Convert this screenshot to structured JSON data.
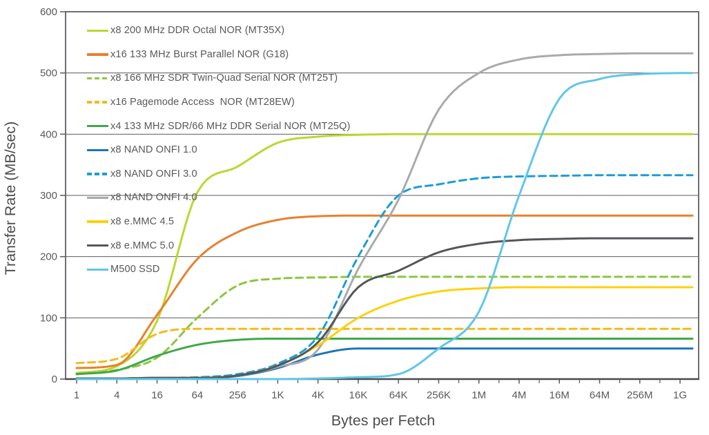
{
  "chart_data": {
    "type": "line",
    "title": "",
    "xlabel": "Bytes per Fetch",
    "ylabel": "Transfer Rate (MB/sec)",
    "x_scale": "log4",
    "x_tick_labels": [
      "1",
      "4",
      "16",
      "64",
      "256",
      "1K",
      "4K",
      "16K",
      "64K",
      "256K",
      "1M",
      "4M",
      "16M",
      "64M",
      "256M",
      "1G"
    ],
    "y_ticks": [
      0,
      100,
      200,
      300,
      400,
      500,
      600
    ],
    "ylim": [
      0,
      600
    ],
    "grid": "horizontal-only",
    "legend_position": "top-left-inside",
    "series": [
      {
        "name": "mt35x",
        "label": "x8 200 MHz DDR Octal NOR (MT35X)",
        "color": "#bdd62f",
        "dashed": false,
        "values": [
          10,
          21,
          95,
          305,
          347,
          386,
          396,
          399,
          400,
          400,
          400,
          400,
          400,
          400,
          400,
          400
        ]
      },
      {
        "name": "g18",
        "label": "x16 133 MHz Burst Parallel NOR (G18)",
        "color": "#e8802d",
        "dashed": false,
        "values": [
          18,
          23,
          105,
          196,
          240,
          260,
          266,
          267,
          267,
          267,
          267,
          267,
          267,
          267,
          267,
          267
        ]
      },
      {
        "name": "mt25t",
        "label": "x8 166 MHz SDR Twin-Quad Serial NOR (MT25T)",
        "color": "#8cc63e",
        "dashed": true,
        "values": [
          8,
          15,
          35,
          100,
          153,
          164,
          166,
          167,
          167,
          167,
          167,
          167,
          167,
          167,
          167,
          167
        ]
      },
      {
        "name": "mt28ew",
        "label": "x16 Pagemode Access  NOR (MT28EW)",
        "color": "#f3ba19",
        "dashed": true,
        "values": [
          26,
          33,
          74,
          82,
          82,
          82,
          82,
          82,
          82,
          82,
          82,
          82,
          82,
          82,
          82,
          82
        ]
      },
      {
        "name": "mt25q",
        "label": "x4 133 MHz SDR/66 MHz DDR Serial NOR (MT25Q)",
        "color": "#3fa948",
        "dashed": false,
        "values": [
          8,
          14,
          38,
          56,
          64,
          66,
          66,
          66,
          66,
          66,
          66,
          66,
          66,
          66,
          66,
          66
        ]
      },
      {
        "name": "onfi10",
        "label": "x8 NAND ONFI 1.0",
        "color": "#1b75bc",
        "dashed": false,
        "values": [
          1,
          1,
          2,
          2,
          5,
          18,
          40,
          50,
          50,
          50,
          50,
          50,
          50,
          50,
          50,
          50
        ]
      },
      {
        "name": "onfi30",
        "label": "x8 NAND ONFI 3.0",
        "color": "#1b9cd8",
        "dashed": true,
        "values": [
          1,
          1,
          2,
          3,
          8,
          25,
          70,
          200,
          300,
          318,
          328,
          331,
          332,
          333,
          333,
          333
        ]
      },
      {
        "name": "onfi40",
        "label": "x8 NAND ONFI 4.0",
        "color": "#a8aaad",
        "dashed": false,
        "values": [
          1,
          1,
          2,
          2,
          6,
          20,
          48,
          180,
          293,
          440,
          500,
          522,
          529,
          531,
          532,
          532
        ]
      },
      {
        "name": "emmc45",
        "label": "x8 e.MMC 4.5",
        "color": "#fdd10a",
        "dashed": false,
        "values": [
          1,
          1,
          2,
          2,
          6,
          22,
          55,
          100,
          128,
          143,
          148,
          150,
          150,
          150,
          150,
          150
        ]
      },
      {
        "name": "emmc50",
        "label": "x8 e.MMC 5.0",
        "color": "#55565a",
        "dashed": false,
        "values": [
          1,
          1,
          2,
          2,
          6,
          22,
          60,
          150,
          177,
          207,
          221,
          227,
          229,
          230,
          230,
          230
        ]
      },
      {
        "name": "m500",
        "label": "M500 SSD",
        "color": "#5fc6e9",
        "dashed": false,
        "values": [
          0,
          0,
          0,
          0,
          0,
          0,
          1,
          3,
          8,
          50,
          110,
          300,
          458,
          490,
          498,
          500
        ]
      }
    ]
  },
  "colors": {
    "frame": "#6d6e71",
    "bottom_axis": "#48494b",
    "gridline": "#5a5b5d",
    "tick": "#58595b",
    "text": "#58595b"
  }
}
